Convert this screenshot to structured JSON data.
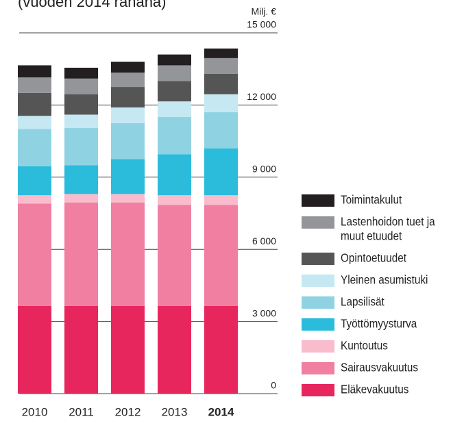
{
  "chart_data": {
    "type": "stacked-bar",
    "subtitle": "(vuoden 2014 rahana)",
    "unit_label": "Milj. €",
    "categories": [
      "2010",
      "2011",
      "2012",
      "2013",
      "2014"
    ],
    "series": [
      {
        "name": "Eläkevakuutus",
        "color": "#e8265e",
        "values": [
          3650,
          3650,
          3650,
          3650,
          3650
        ]
      },
      {
        "name": "Sairausvakuutus",
        "color": "#f07fa2",
        "values": [
          4250,
          4300,
          4300,
          4200,
          4200
        ]
      },
      {
        "name": "Kuntoutus",
        "color": "#f8bccd",
        "values": [
          350,
          350,
          350,
          400,
          400
        ]
      },
      {
        "name": "Työttömyysturva",
        "color": "#2bbcdc",
        "values": [
          1200,
          1200,
          1450,
          1700,
          1950
        ]
      },
      {
        "name": "Lapsilisät",
        "color": "#8fd3e3",
        "values": [
          1550,
          1550,
          1500,
          1550,
          1500
        ]
      },
      {
        "name": "Yleinen asumistuki",
        "color": "#c5e8f2",
        "values": [
          550,
          550,
          650,
          650,
          750
        ]
      },
      {
        "name": "Opintoetuudet",
        "color": "#555555",
        "values": [
          950,
          850,
          850,
          850,
          850
        ]
      },
      {
        "name": "Lastenhoidon tuet ja muut etuudet",
        "color": "#939598",
        "values": [
          650,
          650,
          600,
          650,
          650
        ]
      },
      {
        "name": "Toimintakulut",
        "color": "#231f20",
        "values": [
          500,
          450,
          450,
          450,
          400
        ]
      }
    ],
    "ylim": [
      0,
      15000
    ],
    "yticks": [
      0,
      {
        "value": 3000,
        "label": "3 000"
      },
      {
        "value": 6000,
        "label": "6 000"
      },
      {
        "value": 9000,
        "label": "9 000"
      },
      {
        "value": 12000,
        "label": "12 000"
      },
      {
        "value": 15000,
        "label": "15 000"
      }
    ],
    "grid": true,
    "legend": "right"
  }
}
